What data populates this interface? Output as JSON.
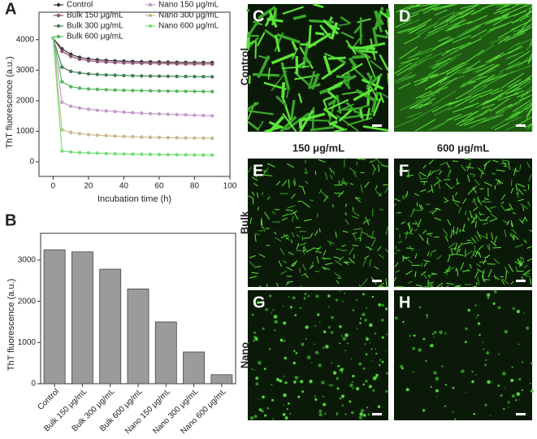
{
  "chart_data": [
    {
      "type": "line",
      "label": "A",
      "xlabel": "Incubation time (h)",
      "ylabel": "ThT fluorescence (a.u.)",
      "x": [
        0,
        5,
        10,
        15,
        20,
        25,
        30,
        35,
        40,
        45,
        50,
        55,
        60,
        65,
        70,
        75,
        80,
        85,
        90
      ],
      "xlim": [
        -8,
        100
      ],
      "ylim": [
        -480,
        4900
      ],
      "xticks": [
        0,
        20,
        40,
        60,
        80,
        100
      ],
      "yticks": [
        0,
        1000,
        2000,
        3000,
        4000
      ],
      "series": [
        {
          "name": "Control",
          "color": "#333333",
          "values": [
            4050,
            3700,
            3520,
            3420,
            3370,
            3340,
            3320,
            3305,
            3295,
            3285,
            3278,
            3272,
            3267,
            3262,
            3258,
            3255,
            3252,
            3250,
            3250
          ]
        },
        {
          "name": "Bulk  150 μg/mL",
          "color": "#8e4f72",
          "values": [
            4050,
            3620,
            3450,
            3360,
            3310,
            3285,
            3265,
            3250,
            3240,
            3232,
            3226,
            3220,
            3215,
            3212,
            3208,
            3205,
            3203,
            3201,
            3200
          ]
        },
        {
          "name": "Bulk  300 μg/mL",
          "color": "#3f7f55",
          "values": [
            4050,
            3100,
            2960,
            2910,
            2880,
            2860,
            2845,
            2835,
            2825,
            2818,
            2812,
            2807,
            2803,
            2800,
            2797,
            2794,
            2791,
            2788,
            2785
          ]
        },
        {
          "name": "Bulk  600 μg/mL",
          "color": "#58b65e",
          "values": [
            4050,
            2620,
            2460,
            2410,
            2385,
            2370,
            2360,
            2350,
            2342,
            2336,
            2330,
            2325,
            2320,
            2316,
            2312,
            2309,
            2306,
            2303,
            2300
          ]
        },
        {
          "name": "Nano  150 μg/mL",
          "color": "#c49ccb",
          "values": [
            4050,
            1950,
            1820,
            1760,
            1720,
            1690,
            1665,
            1645,
            1625,
            1608,
            1592,
            1578,
            1566,
            1555,
            1545,
            1535,
            1525,
            1515,
            1505
          ]
        },
        {
          "name": "Nano  300 μg/mL",
          "color": "#c9b98b",
          "values": [
            4050,
            1050,
            960,
            920,
            890,
            870,
            855,
            840,
            830,
            820,
            810,
            802,
            795,
            790,
            785,
            780,
            777,
            773,
            770
          ]
        },
        {
          "name": "Nano  600 μg/mL",
          "color": "#74e07a",
          "values": [
            4050,
            350,
            320,
            300,
            290,
            280,
            270,
            262,
            255,
            250,
            245,
            240,
            236,
            232,
            229,
            226,
            224,
            222,
            220
          ]
        }
      ]
    },
    {
      "type": "bar",
      "label": "B",
      "ylabel": "ThT fluorescence (a.u.)",
      "color": "#9b9b9b",
      "categories": [
        "Control",
        "Bulk 150 μg/mL",
        "Bulk 300 μg/mL",
        "Bulk 600 μg/mL",
        "Nano 150 μg/mL",
        "Nano 300 μg/mL",
        "Nano 600 μg/mL"
      ],
      "values": [
        3250,
        3200,
        2780,
        2300,
        1500,
        770,
        220
      ],
      "ylim": [
        0,
        3650
      ],
      "yticks": [
        0,
        1000,
        2000,
        3000
      ]
    }
  ],
  "panels": {
    "row_labels": [
      "Control",
      "Bulk",
      "Nano"
    ],
    "column_labels": [
      "150 μg/mL",
      "600 μg/mL"
    ],
    "image_labels": [
      "C",
      "D",
      "E",
      "F",
      "G",
      "H"
    ]
  }
}
